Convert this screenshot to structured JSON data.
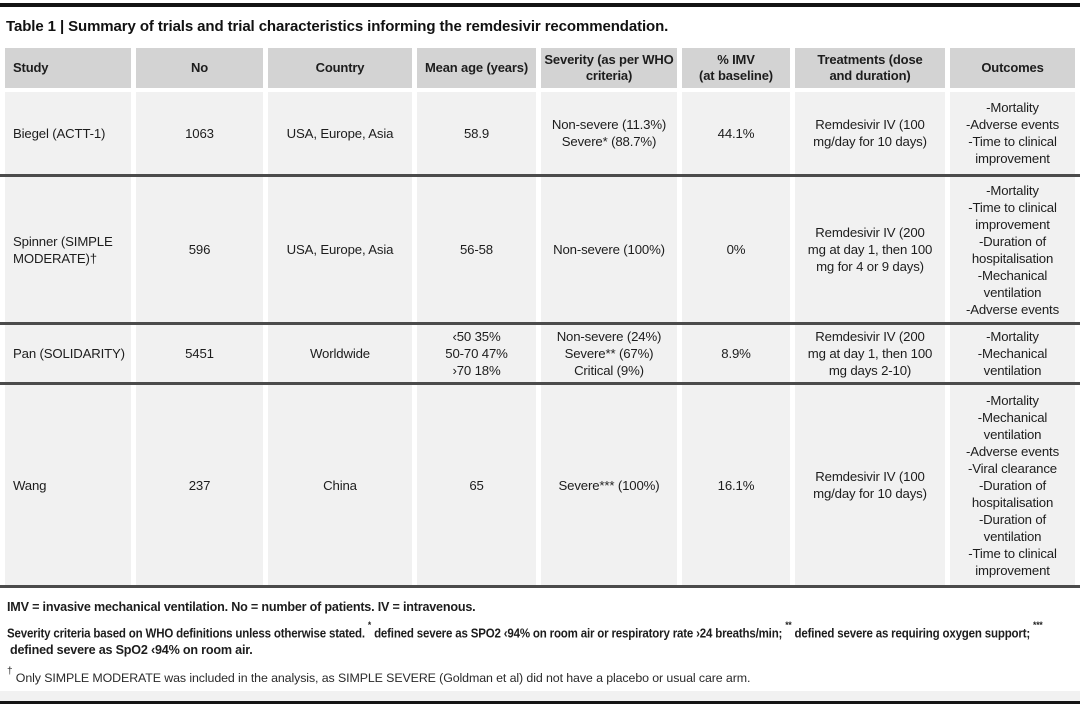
{
  "table": {
    "title": "Table 1 | Summary of trials and trial characteristics informing the remdesivir recommendation.",
    "columns": {
      "study": "Study",
      "no": "No",
      "country": "Country",
      "mean_age": "Mean age (years)",
      "severity": "Severity (as per WHO\ncriteria)",
      "imv": "% IMV\n(at baseline)",
      "treatments": "Treatments (dose\nand duration)",
      "outcomes": "Outcomes"
    },
    "rows": [
      {
        "study": "Biegel (ACTT-1)",
        "no": "1063",
        "country": "USA, Europe, Asia",
        "mean_age": "58.9",
        "severity": "Non-severe (11.3%)\nSevere* (88.7%)",
        "imv": "44.1%",
        "treatments": "Remdesivir IV (100\nmg/day for 10 days)",
        "outcomes": "-Mortality\n-Adverse events\n-Time to clinical\nimprovement"
      },
      {
        "study": "Spinner (SIMPLE\nMODERATE)†",
        "no": "596",
        "country": "USA, Europe, Asia",
        "mean_age": "56-58",
        "severity": "Non-severe (100%)",
        "imv": "0%",
        "treatments": "Remdesivir IV (200\nmg at day 1, then 100\nmg for 4 or 9 days)",
        "outcomes": "-Mortality\n-Time to clinical\nimprovement\n-Duration of\nhospitalisation\n-Mechanical\nventilation\n-Adverse events"
      },
      {
        "study": "Pan (SOLIDARITY)",
        "no": "5451",
        "country": "Worldwide",
        "mean_age": "‹50 35%\n50-70 47%\n›70 18%",
        "severity": "Non-severe (24%)\nSevere** (67%)\nCritical (9%)",
        "imv": "8.9%",
        "treatments": "Remdesivir IV (200\nmg at day 1, then 100\nmg days 2-10)",
        "outcomes": "-Mortality\n-Mechanical\nventilation"
      },
      {
        "study": "Wang",
        "no": "237",
        "country": "China",
        "mean_age": "65",
        "severity": "Severe*** (100%)",
        "imv": "16.1%",
        "treatments": "Remdesivir IV (100\nmg/day for 10 days)",
        "outcomes": "-Mortality\n-Mechanical\nventilation\n-Adverse events\n-Viral clearance\n-Duration of\nhospitalisation\n-Duration of\nventilation\n-Time to clinical\nimprovement"
      }
    ],
    "footnotes": {
      "abbreviations": "IMV = invasive mechanical ventilation. No = number of patients. IV = intravenous.",
      "severity_note": {
        "lead": "Severity criteria based on WHO definitions unless otherwise stated. ",
        "star1": "*",
        "seg1": " defined severe as SPO2 ‹94% on room air or respiratory rate ›24 breaths/min; ",
        "star2": "**",
        "seg2": " defined severe as requiring oxygen support; ",
        "star3": "***",
        "seg3": "defined severe as SpO2 ‹94% on room air."
      },
      "dagger_symbol": "†",
      "dagger_text": " Only SIMPLE MODERATE was included in the analysis, as SIMPLE SEVERE (Goldman et al) did not have a placebo or usual care arm."
    },
    "colors": {
      "header_bg": "#d3d3d3",
      "row_bg": "#f1f1f1",
      "rule": "#4b4b4b",
      "border_bar": "#141414",
      "text": "#1d1d1d"
    }
  }
}
